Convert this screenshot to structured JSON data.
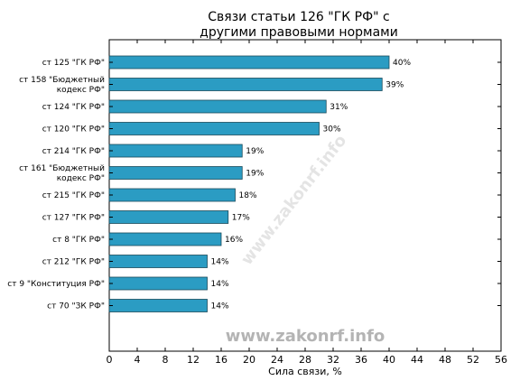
{
  "chart_data": {
    "type": "bar",
    "orientation": "horizontal",
    "title": [
      "Связи статьи 126 \"ГК РФ\" с",
      "другими правовыми нормами"
    ],
    "categories": [
      [
        "ст 125 \"ГК РФ\""
      ],
      [
        "ст 158 \"Бюджетный",
        "кодекс РФ\""
      ],
      [
        "ст 124 \"ГК РФ\""
      ],
      [
        "ст 120 \"ГК РФ\""
      ],
      [
        "ст 214 \"ГК РФ\""
      ],
      [
        "ст 161 \"Бюджетный",
        "кодекс РФ\""
      ],
      [
        "ст 215 \"ГК РФ\""
      ],
      [
        "ст 127 \"ГК РФ\""
      ],
      [
        "ст 8 \"ГК РФ\""
      ],
      [
        "ст 212 \"ГК РФ\""
      ],
      [
        "ст 9 \"Конституция РФ\""
      ],
      [
        "ст 70 \"ЗК РФ\""
      ]
    ],
    "values": [
      40,
      39,
      31,
      30,
      19,
      19,
      18,
      17,
      16,
      14,
      14,
      14
    ],
    "value_labels": [
      "40%",
      "39%",
      "31%",
      "30%",
      "19%",
      "19%",
      "18%",
      "17%",
      "16%",
      "14%",
      "14%",
      "14%"
    ],
    "xlabel": "Сила связи, %",
    "xlim": [
      0,
      56
    ],
    "xticks": [
      0,
      4,
      8,
      12,
      16,
      20,
      24,
      28,
      32,
      36,
      40,
      44,
      48,
      52,
      56
    ],
    "grid": false,
    "bar_color": "#2b9cc3",
    "bar_edge_color": "#1a4a5a"
  },
  "watermark": {
    "bottom_text": "www.zakonrf.info",
    "diagonal_text": "www.zakonrf.info"
  }
}
